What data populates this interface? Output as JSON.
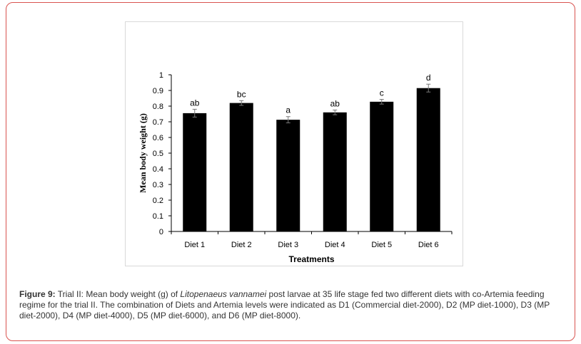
{
  "chart_data": {
    "type": "bar",
    "title": "",
    "xlabel": "Treatments",
    "ylabel": "Mean body weight (g)",
    "ylim": [
      0,
      1
    ],
    "yticks": [
      "0",
      "0.1",
      "0.2",
      "0.3",
      "0.4",
      "0.5",
      "0.6",
      "0.7",
      "0.8",
      "0.9",
      "1"
    ],
    "categories": [
      "Diet 1",
      "Diet 2",
      "Diet 3",
      "Diet 4",
      "Diet 5",
      "Diet 6"
    ],
    "values": [
      0.755,
      0.82,
      0.713,
      0.76,
      0.828,
      0.915
    ],
    "errors": [
      0.025,
      0.015,
      0.02,
      0.015,
      0.015,
      0.025
    ],
    "labels": [
      "ab",
      "bc",
      "a",
      "ab",
      "c",
      "d"
    ],
    "bar_color": "#000000",
    "grid": false
  },
  "caption": {
    "figure_label": "Figure 9:",
    "text_before_species": " Trial II: Mean body weight (g) of ",
    "species": "Litopenaeus vannamei",
    "text_after_species": " post larvae at 35 life stage fed two different diets with co-Artemia feeding regime for the trial II. The combination of Diets and Artemia levels were indicated as D1 (Commercial diet-2000), D2 (MP diet-1000), D3 (MP diet-2000), D4 (MP diet-4000), D5 (MP diet-6000), and D6 (MP diet-8000)."
  },
  "colors": {
    "frame_border": "#d9534f",
    "caption_text": "#333333"
  }
}
